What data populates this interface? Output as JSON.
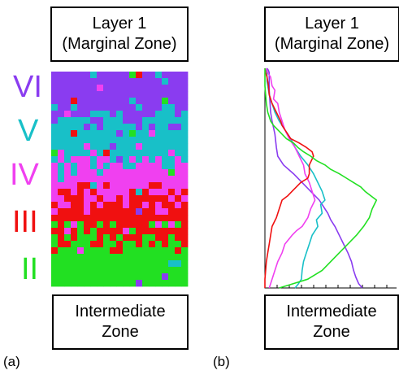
{
  "panel_a": {
    "letter": "(a)",
    "top_box": {
      "line1": "Layer 1",
      "line2": "(Marginal Zone)"
    },
    "bottom_box": {
      "line1": "Intermediate",
      "line2": "Zone"
    },
    "layers": [
      {
        "label": "VI",
        "color": "#8a3cf0"
      },
      {
        "label": "V",
        "color": "#18c0c8"
      },
      {
        "label": "IV",
        "color": "#f040f0"
      },
      {
        "label": "III",
        "color": "#f01010"
      },
      {
        "label": "II",
        "color": "#22e022"
      }
    ]
  },
  "panel_b": {
    "letter": "(b)",
    "top_box": {
      "line1": "Layer 1",
      "line2": "(Marginal Zone)"
    },
    "bottom_box": {
      "line1": "Intermediate",
      "line2": "Zone"
    }
  },
  "chart_data": {
    "type": "line",
    "title": "",
    "xlabel": "",
    "ylabel": "",
    "series": [
      {
        "color": "#8a3cf0",
        "values": [
          [
            3,
            0
          ],
          [
            4,
            4
          ],
          [
            5,
            10
          ],
          [
            6,
            20
          ],
          [
            6,
            30
          ],
          [
            6,
            40
          ],
          [
            6,
            60
          ],
          [
            6,
            80
          ],
          [
            6,
            100
          ],
          [
            8,
            200
          ],
          [
            10,
            240
          ],
          [
            12,
            270
          ],
          [
            14,
            300
          ],
          [
            15,
            330
          ],
          [
            16,
            360
          ],
          [
            18,
            400
          ],
          [
            26,
            440
          ],
          [
            40,
            480
          ],
          [
            52,
            520
          ],
          [
            64,
            560
          ],
          [
            76,
            600
          ],
          [
            84,
            640
          ],
          [
            88,
            660
          ],
          [
            92,
            690
          ],
          [
            98,
            720
          ],
          [
            104,
            760
          ],
          [
            110,
            800
          ],
          [
            116,
            840
          ],
          [
            121,
            880
          ],
          [
            124,
            920
          ],
          [
            127,
            950
          ],
          [
            131,
            980
          ],
          [
            136,
            1000
          ]
        ]
      },
      {
        "color": "#18c0c8",
        "values": [
          [
            1,
            0
          ],
          [
            2,
            10
          ],
          [
            3,
            20
          ],
          [
            3,
            40
          ],
          [
            3,
            60
          ],
          [
            4,
            80
          ],
          [
            6,
            120
          ],
          [
            10,
            160
          ],
          [
            14,
            200
          ],
          [
            20,
            240
          ],
          [
            28,
            280
          ],
          [
            36,
            320
          ],
          [
            42,
            360
          ],
          [
            50,
            400
          ],
          [
            60,
            440
          ],
          [
            68,
            480
          ],
          [
            74,
            520
          ],
          [
            80,
            560
          ],
          [
            84,
            600
          ],
          [
            78,
            620
          ],
          [
            80,
            660
          ],
          [
            72,
            690
          ],
          [
            74,
            720
          ],
          [
            66,
            760
          ],
          [
            62,
            800
          ],
          [
            58,
            840
          ],
          [
            54,
            880
          ],
          [
            52,
            920
          ],
          [
            51,
            960
          ],
          [
            46,
            985
          ],
          [
            42,
            1000
          ]
        ]
      },
      {
        "color": "#f040f0",
        "values": [
          [
            2,
            0
          ],
          [
            3,
            10
          ],
          [
            4,
            20
          ],
          [
            8,
            40
          ],
          [
            10,
            80
          ],
          [
            14,
            100
          ],
          [
            12,
            140
          ],
          [
            18,
            160
          ],
          [
            20,
            200
          ],
          [
            24,
            240
          ],
          [
            28,
            280
          ],
          [
            34,
            320
          ],
          [
            42,
            360
          ],
          [
            48,
            400
          ],
          [
            54,
            440
          ],
          [
            56,
            480
          ],
          [
            62,
            520
          ],
          [
            66,
            560
          ],
          [
            70,
            600
          ],
          [
            64,
            640
          ],
          [
            60,
            680
          ],
          [
            52,
            720
          ],
          [
            44,
            740
          ],
          [
            38,
            760
          ],
          [
            28,
            800
          ],
          [
            24,
            840
          ],
          [
            18,
            880
          ],
          [
            14,
            920
          ],
          [
            10,
            960
          ],
          [
            6,
            1000
          ]
        ]
      },
      {
        "color": "#f01010",
        "values": [
          [
            0,
            0
          ],
          [
            1,
            20
          ],
          [
            3,
            40
          ],
          [
            5,
            80
          ],
          [
            6,
            120
          ],
          [
            10,
            160
          ],
          [
            16,
            200
          ],
          [
            22,
            240
          ],
          [
            24,
            260
          ],
          [
            30,
            290
          ],
          [
            36,
            320
          ],
          [
            48,
            340
          ],
          [
            58,
            360
          ],
          [
            66,
            380
          ],
          [
            68,
            400
          ],
          [
            62,
            440
          ],
          [
            62,
            480
          ],
          [
            60,
            500
          ],
          [
            50,
            520
          ],
          [
            44,
            540
          ],
          [
            38,
            560
          ],
          [
            32,
            580
          ],
          [
            24,
            600
          ],
          [
            20,
            640
          ],
          [
            16,
            680
          ],
          [
            10,
            720
          ],
          [
            8,
            760
          ],
          [
            6,
            800
          ],
          [
            4,
            840
          ],
          [
            2,
            880
          ],
          [
            1,
            920
          ],
          [
            0,
            960
          ],
          [
            0,
            1000
          ]
        ]
      },
      {
        "color": "#22e022",
        "values": [
          [
            0,
            0
          ],
          [
            0,
            40
          ],
          [
            0,
            80
          ],
          [
            1,
            120
          ],
          [
            2,
            160
          ],
          [
            4,
            200
          ],
          [
            6,
            220
          ],
          [
            8,
            240
          ],
          [
            12,
            260
          ],
          [
            18,
            280
          ],
          [
            24,
            300
          ],
          [
            30,
            320
          ],
          [
            40,
            340
          ],
          [
            46,
            360
          ],
          [
            54,
            380
          ],
          [
            64,
            400
          ],
          [
            72,
            420
          ],
          [
            84,
            440
          ],
          [
            92,
            460
          ],
          [
            104,
            480
          ],
          [
            114,
            500
          ],
          [
            124,
            520
          ],
          [
            134,
            540
          ],
          [
            140,
            560
          ],
          [
            148,
            580
          ],
          [
            156,
            600
          ],
          [
            150,
            640
          ],
          [
            146,
            680
          ],
          [
            138,
            720
          ],
          [
            128,
            760
          ],
          [
            116,
            800
          ],
          [
            104,
            840
          ],
          [
            92,
            880
          ],
          [
            80,
            920
          ],
          [
            60,
            960
          ],
          [
            40,
            980
          ],
          [
            20,
            1000
          ]
        ]
      }
    ]
  }
}
